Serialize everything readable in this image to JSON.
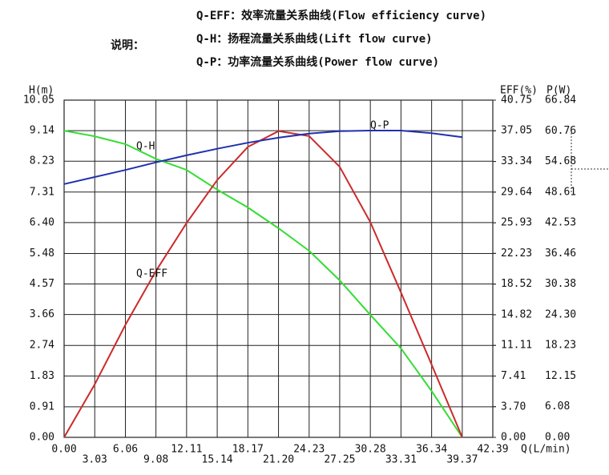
{
  "chart_data": {
    "type": "line",
    "note_label": "说明：",
    "descriptions": [
      "Q-EFF：效率流量关系曲线(Flow efficiency curve)",
      "Q-H：扬程流量关系曲线(Lift flow curve)",
      "Q-P：功率流量关系曲线(Power flow curve)"
    ],
    "xlabel": "Q(L/min)",
    "ylabel": "H(m)",
    "y2label": "EFF(%)",
    "y3label": "P(W)",
    "grid": true,
    "xlim": [
      0,
      42.39
    ],
    "xticks": [
      {
        "value": 0,
        "label": "0.00"
      },
      3.03,
      6.06,
      9.08,
      12.11,
      15.14,
      18.17,
      {
        "value": 21.2,
        "label": "21.20"
      },
      24.23,
      27.25,
      30.28,
      33.31,
      36.34,
      39.37,
      42.39
    ],
    "ylim": [
      0,
      10.05
    ],
    "yticks": [
      {
        "value": 0,
        "label": "0.00"
      },
      0.91,
      1.83,
      2.74,
      3.66,
      4.57,
      5.48,
      {
        "value": 6.4,
        "label": "6.40"
      },
      7.31,
      8.23,
      9.14,
      10.05
    ],
    "y2lim": [
      0,
      40.75
    ],
    "y2ticks": [
      {
        "value": 0,
        "label": "0.00"
      },
      {
        "value": 3.7,
        "label": "3.70"
      },
      7.41,
      11.11,
      14.82,
      18.52,
      22.23,
      25.93,
      29.64,
      33.34,
      37.05,
      40.75
    ],
    "y3lim": [
      0,
      66.84
    ],
    "y3ticks": [
      {
        "value": 0,
        "label": "0.00"
      },
      6.08,
      12.15,
      18.23,
      {
        "value": 24.3,
        "label": "24.30"
      },
      30.38,
      36.46,
      42.53,
      48.61,
      54.68,
      60.76,
      66.84
    ],
    "x": [
      0,
      3.03,
      6.06,
      9.08,
      12.11,
      15.14,
      18.17,
      21.2,
      24.23,
      27.25,
      30.28,
      33.31,
      36.34,
      39.37
    ],
    "series": [
      {
        "name": "Q-H",
        "color": "#33dd33",
        "axis": "y",
        "values": [
          9.14,
          8.97,
          8.74,
          8.3,
          7.97,
          7.38,
          6.85,
          6.23,
          5.56,
          4.68,
          3.65,
          2.65,
          1.38,
          0
        ]
      },
      {
        "name": "Q-EFF",
        "color": "#cc2a2a",
        "axis": "y2",
        "values": [
          0,
          6.4,
          13.6,
          20.1,
          25.9,
          31.1,
          35.1,
          37.0,
          36.4,
          32.7,
          26.0,
          17.5,
          8.8,
          0
        ]
      },
      {
        "name": "Q-P",
        "color": "#2030b0",
        "axis": "y3",
        "values": [
          50.2,
          51.6,
          53.0,
          54.5,
          55.9,
          57.2,
          58.4,
          59.4,
          60.2,
          60.7,
          60.8,
          60.8,
          60.3,
          59.5
        ]
      }
    ]
  }
}
